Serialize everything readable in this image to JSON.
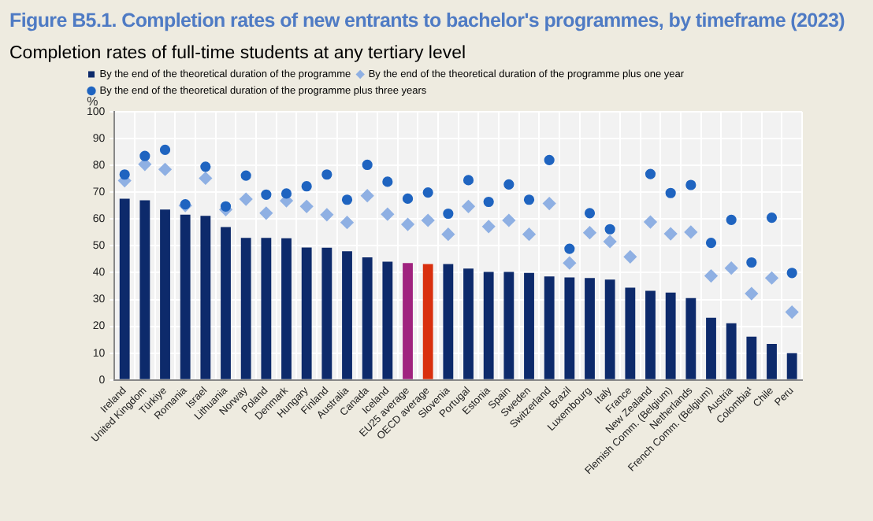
{
  "chart_data": {
    "type": "bar",
    "title": "Figure B5.1. Completion rates of new entrants to bachelor's programmes, by timeframe (2023)",
    "subtitle": "Completion rates of full-time students at any tertiary level",
    "ylabel": "%",
    "categories": [
      "Ireland",
      "United Kingdom",
      "Türkiye",
      "Romania",
      "Israel",
      "Lithuania",
      "Norway",
      "Poland",
      "Denmark",
      "Hungary",
      "Finland",
      "Australia",
      "Canada",
      "Iceland",
      "EU25 average",
      "OECD average",
      "Slovenia",
      "Portugal",
      "Estonia",
      "Spain",
      "Sweden",
      "Switzerland",
      "Brazil",
      "Luxembourg",
      "Italy",
      "France",
      "New Zealand",
      "Flemish Comm. (Belgium)",
      "Netherlands",
      "French Comm. (Belgium)",
      "Austria",
      "Colombia¹",
      "Chile",
      "Peru"
    ],
    "series": [
      {
        "name": "By the end of the theoretical duration of the programme",
        "marker": "square",
        "color": "#0d2a6b",
        "colors": [
          "#0d2a6b",
          "#0d2a6b",
          "#0d2a6b",
          "#0d2a6b",
          "#0d2a6b",
          "#0d2a6b",
          "#0d2a6b",
          "#0d2a6b",
          "#0d2a6b",
          "#0d2a6b",
          "#0d2a6b",
          "#0d2a6b",
          "#0d2a6b",
          "#0d2a6b",
          "#a0237f",
          "#d9300f",
          "#0d2a6b",
          "#0d2a6b",
          "#0d2a6b",
          "#0d2a6b",
          "#0d2a6b",
          "#0d2a6b",
          "#0d2a6b",
          "#0d2a6b",
          "#0d2a6b",
          "#0d2a6b",
          "#0d2a6b",
          "#0d2a6b",
          "#0d2a6b",
          "#0d2a6b",
          "#0d2a6b",
          "#0d2a6b",
          "#0d2a6b",
          "#0d2a6b"
        ],
        "values": [
          67.6,
          67,
          63.5,
          61.6,
          61.2,
          57,
          53,
          53,
          52.8,
          49.4,
          49.3,
          48,
          45.7,
          44.1,
          43.6,
          43.2,
          43.2,
          41.5,
          40.3,
          40.3,
          39.9,
          38.6,
          38.2,
          38,
          37.4,
          34.4,
          33.2,
          32.6,
          30.5,
          23.2,
          21.1,
          16.1,
          13.4,
          10
        ]
      },
      {
        "name": "By the end of the theoretical duration of the programme plus one year",
        "type": "scatter",
        "marker": "diamond",
        "color": "#8fb0e3",
        "values": [
          74.3,
          80.4,
          78.5,
          65,
          75.2,
          63.5,
          67.4,
          62.2,
          66.8,
          64.7,
          61.6,
          58.7,
          68.7,
          61.8,
          58,
          59.5,
          54.3,
          64.7,
          57.2,
          59.5,
          54.3,
          65.8,
          43.6,
          54.9,
          51.6,
          45.9,
          58.9,
          54.5,
          55.1,
          38.8,
          41.7,
          32.2,
          38,
          25.3
        ]
      },
      {
        "name": "By the end of the theoretical duration of the programme plus three years",
        "type": "scatter",
        "marker": "circle",
        "color": "#1f64c0",
        "values": [
          76.6,
          83.5,
          85.8,
          65.5,
          79.5,
          64.7,
          76.2,
          69.1,
          69.5,
          72.2,
          76.6,
          67.2,
          80.2,
          73.9,
          67.6,
          69.9,
          62,
          74.5,
          66.4,
          72.9,
          67.2,
          82,
          48.9,
          62.2,
          56.2,
          null,
          76.8,
          69.7,
          72.7,
          51.1,
          59.7,
          43.8,
          60.5,
          39.9
        ]
      }
    ],
    "ylim": [
      0,
      100
    ],
    "yticks": [
      0,
      10,
      20,
      30,
      40,
      50,
      60,
      70,
      80,
      90,
      100
    ],
    "grid": true,
    "legend": "top"
  }
}
